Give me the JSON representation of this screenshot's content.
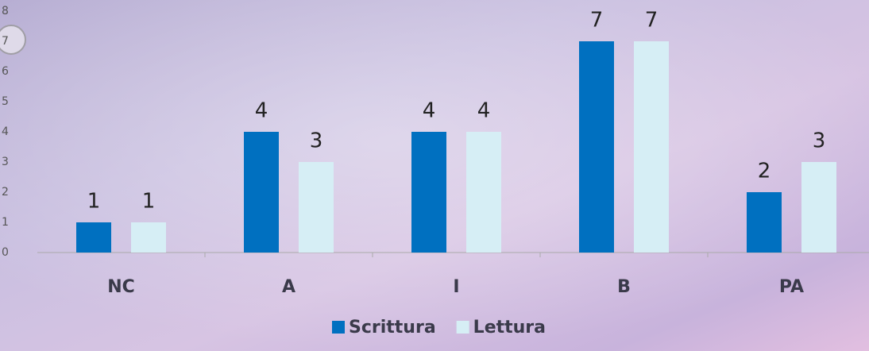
{
  "chart_data": {
    "type": "bar",
    "categories": [
      "NC",
      "A",
      "I",
      "B",
      "PA"
    ],
    "series": [
      {
        "name": "Scrittura",
        "color": "#0070c0",
        "values": [
          1,
          4,
          4,
          7,
          2
        ]
      },
      {
        "name": "Lettura",
        "color": "#d6eef5",
        "values": [
          1,
          3,
          4,
          7,
          3
        ]
      }
    ],
    "ylim": [
      0,
      8
    ],
    "yticks": [
      0,
      1,
      2,
      3,
      4,
      5,
      6,
      7,
      8
    ],
    "grid": false,
    "legend": "bottom"
  }
}
